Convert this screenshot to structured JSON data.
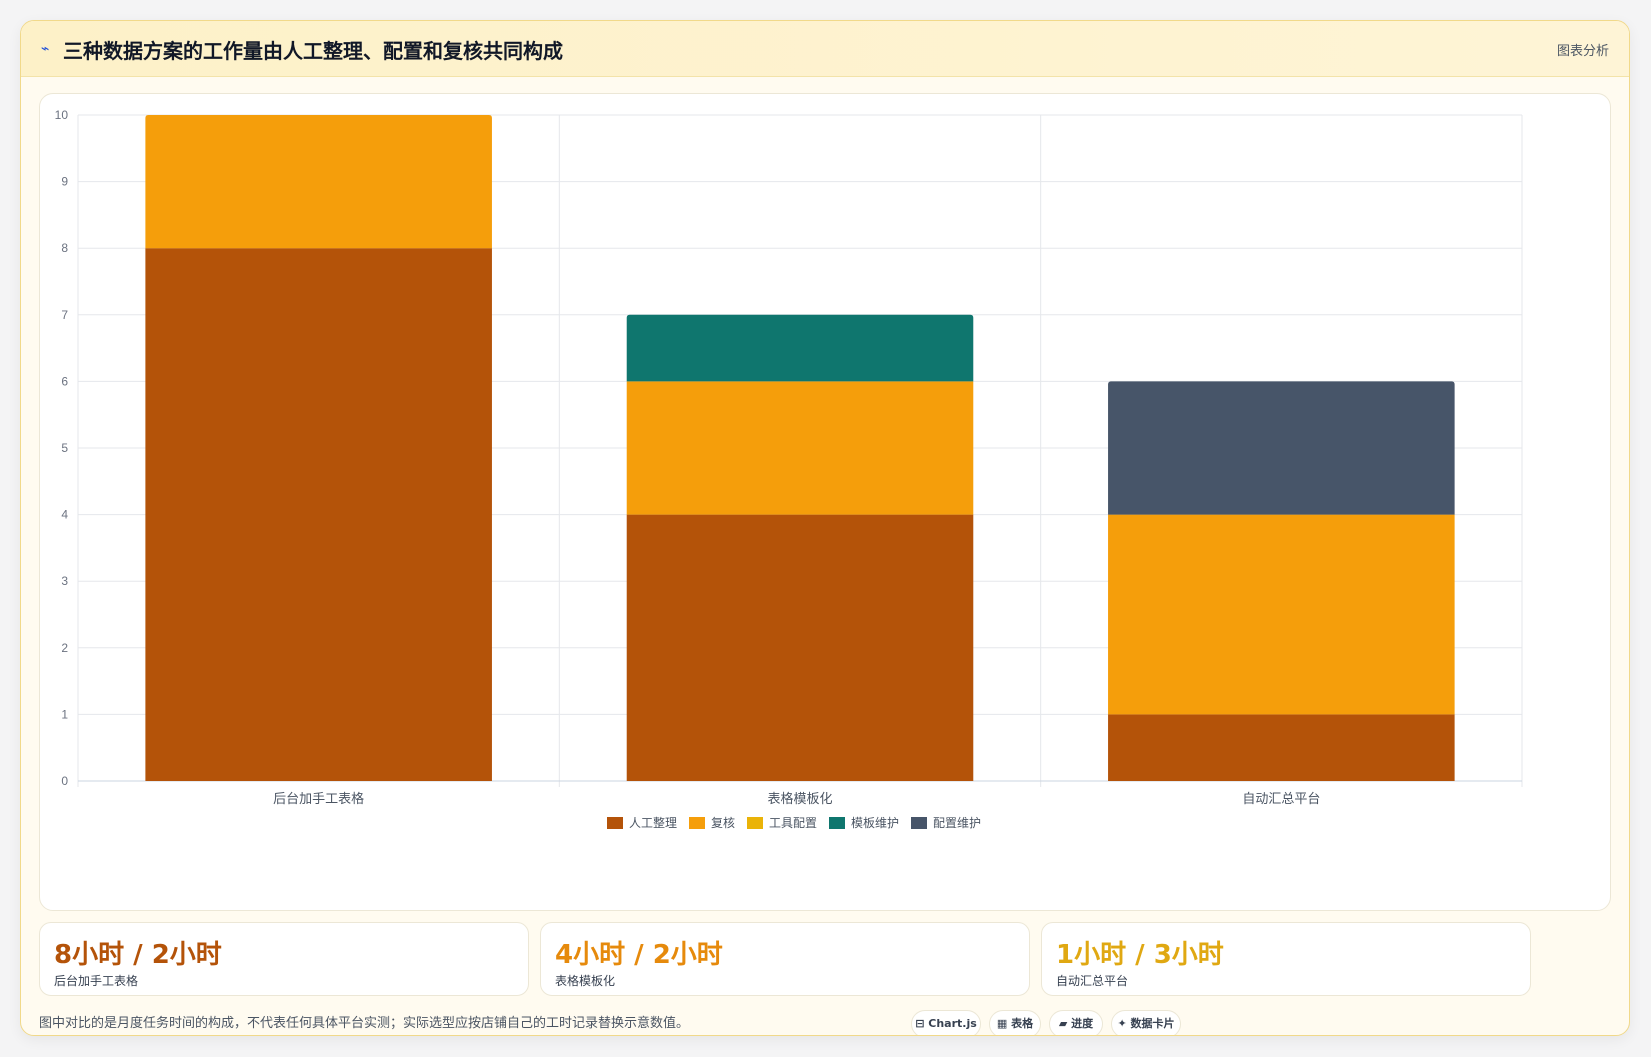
{
  "header": {
    "icon": "⌁",
    "title": "三种数据方案的工作量由人工整理、配置和复核共同构成",
    "tag": "图表分析"
  },
  "chart_data": {
    "type": "bar",
    "stacked": true,
    "categories": [
      "后台加手工表格",
      "表格模板化",
      "自动汇总平台"
    ],
    "series": [
      {
        "name": "人工整理",
        "color": "#b45309",
        "values": [
          8,
          4,
          1
        ]
      },
      {
        "name": "复核",
        "color": "#f59e0b",
        "values": [
          2,
          2,
          3
        ]
      },
      {
        "name": "工具配置",
        "color": "#eab308",
        "values": [
          0,
          0,
          0
        ]
      },
      {
        "name": "模板维护",
        "color": "#0f766e",
        "values": [
          0,
          1,
          0
        ]
      },
      {
        "name": "配置维护",
        "color": "#475569",
        "values": [
          0,
          0,
          2
        ]
      }
    ],
    "ylim": [
      0,
      10
    ],
    "yticks": [
      0,
      1,
      2,
      3,
      4,
      5,
      6,
      7,
      8,
      9,
      10
    ],
    "grid": true,
    "legend": "bottom"
  },
  "stats": [
    {
      "value": "8小时 / 2小时",
      "label": "后台加手工表格",
      "color": "#b45309"
    },
    {
      "value": "4小时 / 2小时",
      "label": "表格模板化",
      "color": "#e68a0c"
    },
    {
      "value": "1小时 / 3小时",
      "label": "自动汇总平台",
      "color": "#e0a812"
    }
  ],
  "footnote": "图中对比的是月度任务时间的构成，不代表任何具体平台实测；实际选型应按店铺自己的工时记录替换示意数值。",
  "chips": [
    {
      "icon": "⊟",
      "label": "Chart.js"
    },
    {
      "icon": "▦",
      "label": "表格"
    },
    {
      "icon": "▰",
      "label": "进度"
    },
    {
      "icon": "✦",
      "label": "数据卡片"
    }
  ]
}
